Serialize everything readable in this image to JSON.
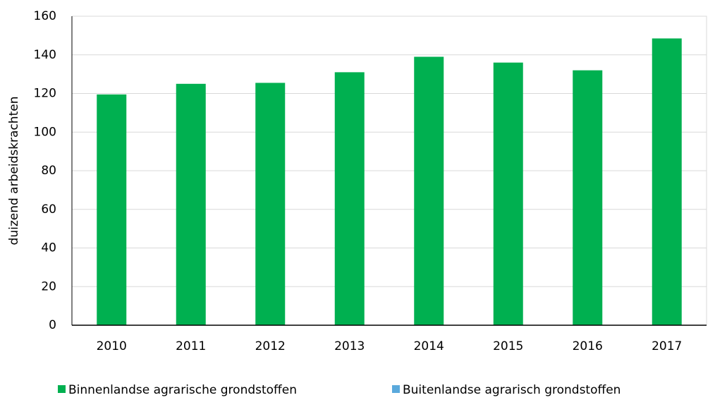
{
  "chart_data": {
    "type": "bar",
    "stacked": true,
    "y_label": "duizend arbeidskrachten",
    "categories": [
      "2010",
      "2011",
      "2012",
      "2013",
      "2014",
      "2015",
      "2016",
      "2017"
    ],
    "series": [
      {
        "name": "Binnenlandse agrarische grondstoffen",
        "color": "#00b050",
        "values": [
          119.5,
          125,
          125.5,
          131,
          139,
          136,
          132,
          148.5
        ]
      },
      {
        "name": "Buitenlandse agrarisch grondstoffen",
        "color": "#5aa9dc",
        "values": [
          0,
          0,
          0,
          0,
          0,
          0,
          0,
          0
        ]
      }
    ],
    "ylim": [
      0,
      160
    ],
    "yticks": [
      0,
      20,
      40,
      60,
      80,
      100,
      120,
      140,
      160
    ],
    "grid": true,
    "legend": "bottom"
  }
}
